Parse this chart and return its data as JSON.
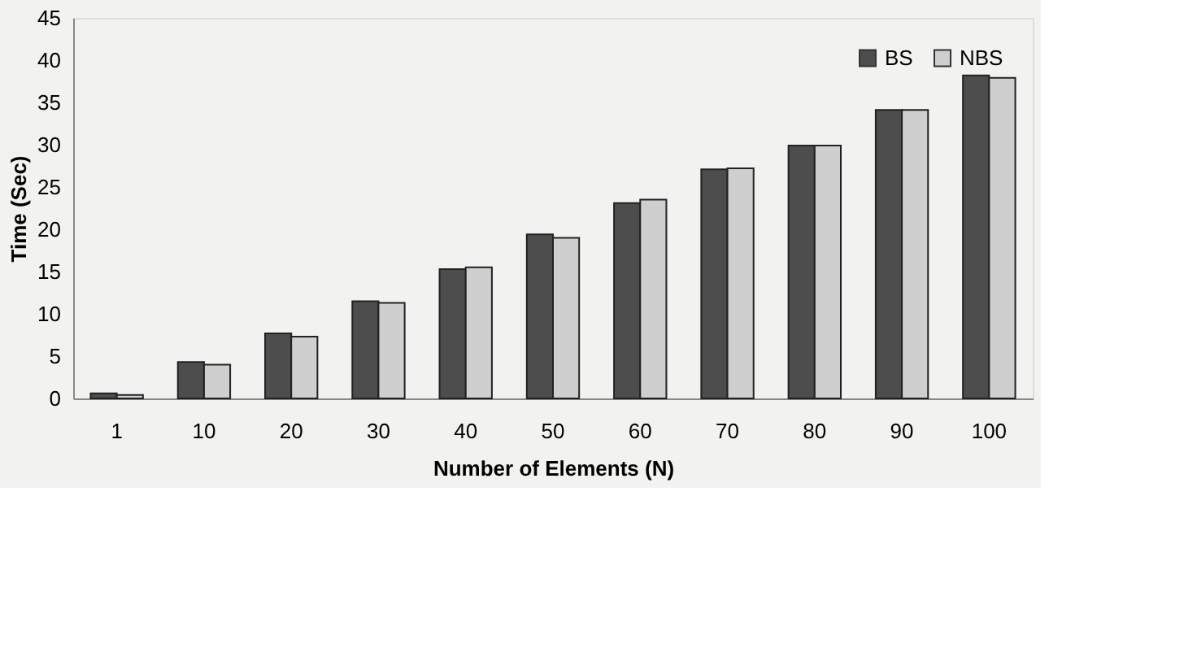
{
  "chart_data": {
    "type": "bar",
    "xlabel": "Number of Elements (N)",
    "ylabel": "Time (Sec)",
    "categories": [
      "1",
      "10",
      "20",
      "30",
      "40",
      "50",
      "60",
      "70",
      "80",
      "90",
      "100"
    ],
    "series": [
      {
        "name": "BS",
        "color": "#4d4d4d",
        "values": [
          0.6,
          4.3,
          7.7,
          11.5,
          15.3,
          19.4,
          23.1,
          27.1,
          29.9,
          34.1,
          38.2
        ]
      },
      {
        "name": "NBS",
        "color": "#cfcfcf",
        "values": [
          0.4,
          4.0,
          7.3,
          11.3,
          15.5,
          19.0,
          23.5,
          27.2,
          29.9,
          34.1,
          37.9
        ]
      }
    ],
    "ylim": [
      0,
      45
    ],
    "yticks": [
      0,
      5,
      10,
      15,
      20,
      25,
      30,
      35,
      40,
      45
    ],
    "grid": false,
    "legend": "top right"
  }
}
